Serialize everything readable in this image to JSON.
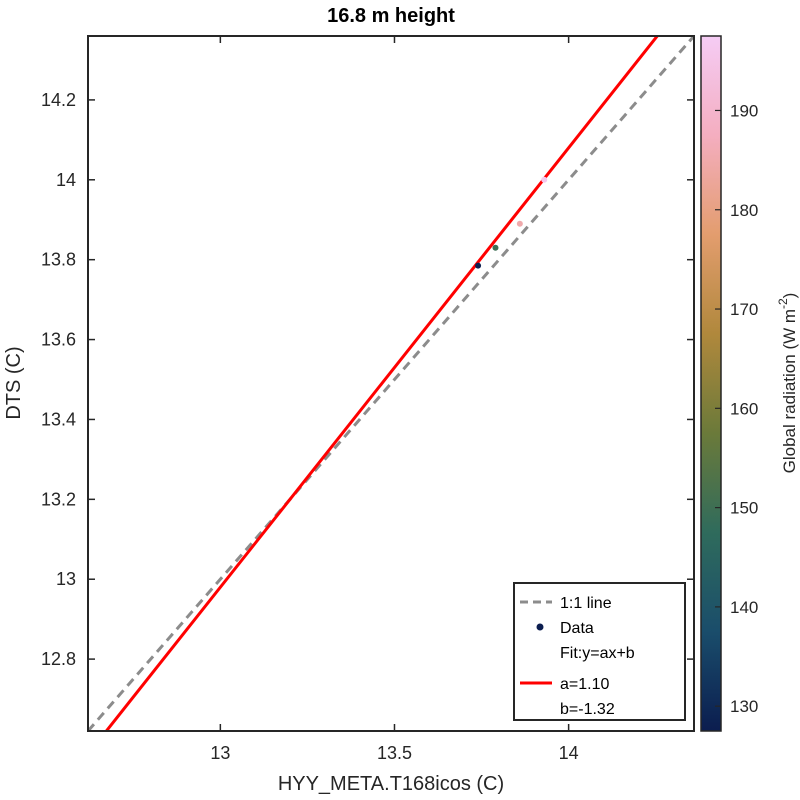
{
  "chart_data": {
    "type": "scatter",
    "title": "16.8 m height",
    "xlabel": "HYY_META.T168icos (C)",
    "ylabel": "DTS (C)",
    "xlim": [
      12.62,
      14.36
    ],
    "ylim": [
      12.62,
      14.36
    ],
    "xticks": [
      13,
      13.5,
      14
    ],
    "xtick_labels": [
      "13",
      "13.5",
      "14"
    ],
    "yticks": [
      12.8,
      13,
      13.2,
      13.4,
      13.6,
      13.8,
      14,
      14.2
    ],
    "ytick_labels": [
      "12.8",
      "13",
      "13.2",
      "13.4",
      "13.6",
      "13.8",
      "14",
      "14.2"
    ],
    "grid": false,
    "series": [
      {
        "name": "Data",
        "points": [
          {
            "x": 13.74,
            "y": 13.785,
            "radiation": 128
          },
          {
            "x": 13.79,
            "y": 13.83,
            "radiation": 150
          },
          {
            "x": 13.86,
            "y": 13.89,
            "radiation": 185
          },
          {
            "x": 13.93,
            "y": 14.0,
            "radiation": 196
          }
        ]
      }
    ],
    "one_to_one": {
      "label": "1:1 line",
      "color": "#8c8c8c"
    },
    "fit": {
      "a": 1.1,
      "b": -1.32,
      "color": "#ff0000"
    },
    "colorbar": {
      "label": "Global radiation (W m",
      "label_sup": "-2",
      "label_close": ")",
      "range": [
        127.5,
        197.5
      ],
      "ticks": [
        130,
        140,
        150,
        160,
        170,
        180,
        190
      ],
      "tick_labels": [
        "130",
        "140",
        "150",
        "160",
        "170",
        "180",
        "190"
      ],
      "colors": [
        "#0b1d4f",
        "#1a4d6b",
        "#2f6b5c",
        "#6b7a3a",
        "#b0883c",
        "#e39d6e",
        "#f4aec0",
        "#f5ccf5"
      ]
    },
    "legend": {
      "position": "bottom-right",
      "entries": [
        "1:1 line",
        "Data",
        "Fit:y=ax+b",
        "a=1.10",
        "b=-1.32"
      ]
    }
  }
}
